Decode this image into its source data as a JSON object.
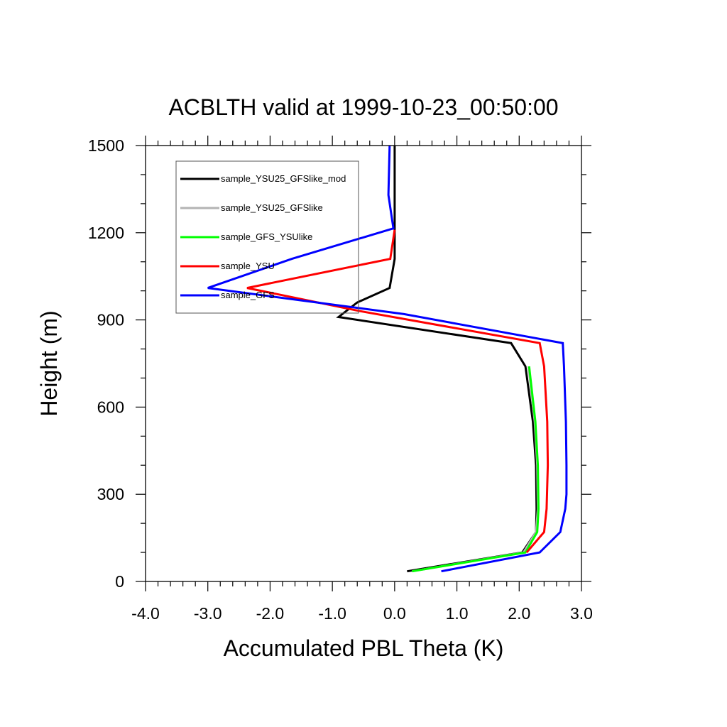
{
  "chart_data": {
    "type": "line",
    "title": "ACBLTH valid at 1999-10-23_00:50:00",
    "xlabel": "Accumulated PBL Theta (K)",
    "ylabel": "Height (m)",
    "xlim": [
      -4.0,
      3.0
    ],
    "ylim": [
      0,
      1500
    ],
    "xticks": [
      -4.0,
      -3.0,
      -2.0,
      -1.0,
      0.0,
      1.0,
      2.0,
      3.0
    ],
    "xtick_labels": [
      "-4.0",
      "-3.0",
      "-2.0",
      "-1.0",
      "0.0",
      "1.0",
      "2.0",
      "3.0"
    ],
    "yticks": [
      0,
      300,
      600,
      900,
      1200,
      1500
    ],
    "ytick_labels": [
      "0",
      "300",
      "600",
      "900",
      "1200",
      "1500"
    ],
    "grid": false,
    "legend_position": "top-left",
    "series": [
      {
        "name": "sample_YSU25_GFSlike_mod",
        "color": "#000000",
        "points": [
          [
            0.2,
            35
          ],
          [
            2.05,
            100
          ],
          [
            2.27,
            170
          ],
          [
            2.28,
            250
          ],
          [
            2.27,
            400
          ],
          [
            2.22,
            550
          ],
          [
            2.1,
            740
          ],
          [
            1.87,
            820
          ],
          [
            -0.9,
            910
          ],
          [
            -0.6,
            960
          ],
          [
            -0.08,
            1010
          ],
          [
            0.0,
            1110
          ],
          [
            0.0,
            1200
          ],
          [
            0.0,
            1500
          ]
        ]
      },
      {
        "name": "sample_YSU25_GFSlike",
        "color": "#b3b3b3",
        "points": [
          [
            0.28,
            35
          ],
          [
            2.07,
            100
          ],
          [
            2.27,
            170
          ],
          [
            2.3,
            250
          ],
          [
            2.29,
            400
          ],
          [
            2.25,
            550
          ],
          [
            2.15,
            740
          ]
        ]
      },
      {
        "name": "sample_GFS_YSUlike",
        "color": "#00ff00",
        "points": [
          [
            0.28,
            35
          ],
          [
            2.1,
            100
          ],
          [
            2.29,
            170
          ],
          [
            2.31,
            250
          ],
          [
            2.3,
            400
          ],
          [
            2.26,
            550
          ],
          [
            2.16,
            740
          ]
        ]
      },
      {
        "name": "sample_YSU",
        "color": "#ff0000",
        "points": [
          [
            2.12,
            100
          ],
          [
            2.4,
            170
          ],
          [
            2.44,
            250
          ],
          [
            2.46,
            400
          ],
          [
            2.45,
            550
          ],
          [
            2.4,
            740
          ],
          [
            2.33,
            820
          ],
          [
            -0.55,
            930
          ],
          [
            -2.37,
            1010
          ],
          [
            -0.07,
            1110
          ],
          [
            0.0,
            1210
          ]
        ]
      },
      {
        "name": "sample_GFS",
        "color": "#0000ff",
        "points": [
          [
            0.75,
            35
          ],
          [
            2.33,
            100
          ],
          [
            2.66,
            170
          ],
          [
            2.74,
            250
          ],
          [
            2.76,
            300
          ],
          [
            2.76,
            400
          ],
          [
            2.75,
            550
          ],
          [
            2.72,
            740
          ],
          [
            2.7,
            820
          ],
          [
            0.15,
            920
          ],
          [
            -3.0,
            1010
          ],
          [
            -1.65,
            1110
          ],
          [
            -0.02,
            1215
          ],
          [
            -0.1,
            1330
          ],
          [
            -0.08,
            1500
          ]
        ]
      }
    ]
  }
}
